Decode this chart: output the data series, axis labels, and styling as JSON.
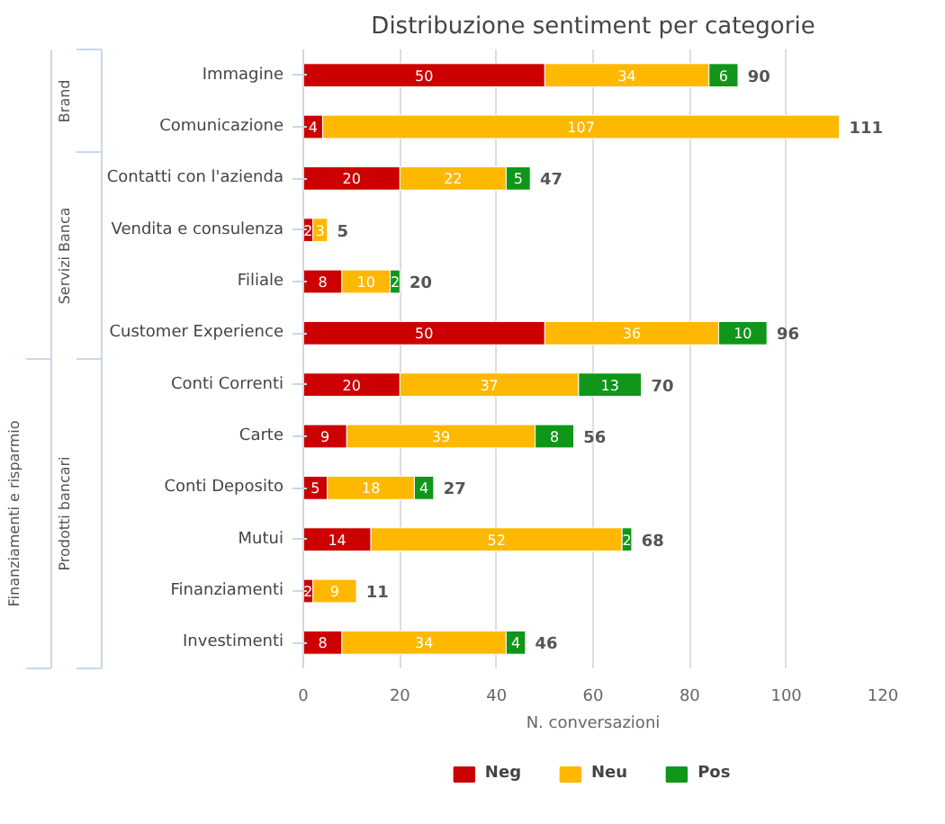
{
  "chart_data": {
    "type": "bar",
    "orientation": "horizontal",
    "stacked": true,
    "title": "Distribuzione sentiment per categorie",
    "xlabel": "N. conversazioni",
    "categories": [
      "Immagine",
      "Comunicazione",
      "Contatti con l'azienda",
      "Vendita e consulenza",
      "Filiale",
      "Customer Experience",
      "Conti Correnti",
      "Carte",
      "Conti Deposito",
      "Mutui",
      "Finanziamenti",
      "Investimenti"
    ],
    "series": [
      {
        "name": "Neg",
        "color": "#cc0000",
        "values": [
          50,
          4,
          20,
          2,
          8,
          50,
          20,
          9,
          5,
          14,
          2,
          8
        ]
      },
      {
        "name": "Neu",
        "color": "#ffb800",
        "values": [
          34,
          107,
          22,
          3,
          10,
          36,
          37,
          39,
          18,
          52,
          9,
          34
        ]
      },
      {
        "name": "Pos",
        "color": "#109618",
        "values": [
          6,
          null,
          5,
          null,
          2,
          10,
          13,
          8,
          4,
          2,
          null,
          4
        ]
      }
    ],
    "totals": [
      "90",
      "111",
      "47",
      "5",
      "20",
      "96",
      "70",
      "56",
      "27",
      "68",
      "11",
      "46"
    ],
    "annotations": [
      "Brand",
      "Servizi Banca",
      "Prodotti bancari",
      "Finanziamenti e risparmio"
    ],
    "data_labels": true,
    "xlim": [
      0,
      120
    ],
    "xticks": [
      0,
      20,
      40,
      60,
      80,
      100,
      120
    ],
    "grid": "x",
    "legend": "bottom"
  }
}
